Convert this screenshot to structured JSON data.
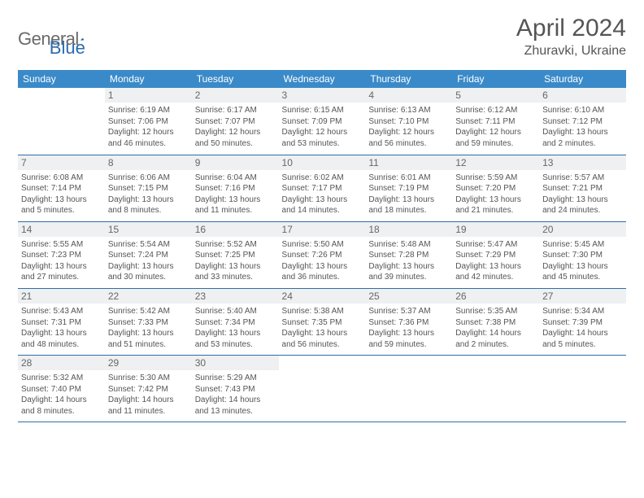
{
  "brand": {
    "part1": "General",
    "part2": "Blue"
  },
  "title": "April 2024",
  "location": "Zhuravki, Ukraine",
  "colors": {
    "header_bg": "#3a8ac9",
    "row_border": "#2e6fa8",
    "daynum_bg": "#eef0f1",
    "text": "#555555",
    "logo_gray": "#6a6a6a",
    "logo_blue": "#2a6cb0"
  },
  "columns": [
    "Sunday",
    "Monday",
    "Tuesday",
    "Wednesday",
    "Thursday",
    "Friday",
    "Saturday"
  ],
  "weeks": [
    [
      {
        "day": "",
        "sunrise": "",
        "sunset": "",
        "daylight": ""
      },
      {
        "day": "1",
        "sunrise": "Sunrise: 6:19 AM",
        "sunset": "Sunset: 7:06 PM",
        "daylight": "Daylight: 12 hours and 46 minutes."
      },
      {
        "day": "2",
        "sunrise": "Sunrise: 6:17 AM",
        "sunset": "Sunset: 7:07 PM",
        "daylight": "Daylight: 12 hours and 50 minutes."
      },
      {
        "day": "3",
        "sunrise": "Sunrise: 6:15 AM",
        "sunset": "Sunset: 7:09 PM",
        "daylight": "Daylight: 12 hours and 53 minutes."
      },
      {
        "day": "4",
        "sunrise": "Sunrise: 6:13 AM",
        "sunset": "Sunset: 7:10 PM",
        "daylight": "Daylight: 12 hours and 56 minutes."
      },
      {
        "day": "5",
        "sunrise": "Sunrise: 6:12 AM",
        "sunset": "Sunset: 7:11 PM",
        "daylight": "Daylight: 12 hours and 59 minutes."
      },
      {
        "day": "6",
        "sunrise": "Sunrise: 6:10 AM",
        "sunset": "Sunset: 7:12 PM",
        "daylight": "Daylight: 13 hours and 2 minutes."
      }
    ],
    [
      {
        "day": "7",
        "sunrise": "Sunrise: 6:08 AM",
        "sunset": "Sunset: 7:14 PM",
        "daylight": "Daylight: 13 hours and 5 minutes."
      },
      {
        "day": "8",
        "sunrise": "Sunrise: 6:06 AM",
        "sunset": "Sunset: 7:15 PM",
        "daylight": "Daylight: 13 hours and 8 minutes."
      },
      {
        "day": "9",
        "sunrise": "Sunrise: 6:04 AM",
        "sunset": "Sunset: 7:16 PM",
        "daylight": "Daylight: 13 hours and 11 minutes."
      },
      {
        "day": "10",
        "sunrise": "Sunrise: 6:02 AM",
        "sunset": "Sunset: 7:17 PM",
        "daylight": "Daylight: 13 hours and 14 minutes."
      },
      {
        "day": "11",
        "sunrise": "Sunrise: 6:01 AM",
        "sunset": "Sunset: 7:19 PM",
        "daylight": "Daylight: 13 hours and 18 minutes."
      },
      {
        "day": "12",
        "sunrise": "Sunrise: 5:59 AM",
        "sunset": "Sunset: 7:20 PM",
        "daylight": "Daylight: 13 hours and 21 minutes."
      },
      {
        "day": "13",
        "sunrise": "Sunrise: 5:57 AM",
        "sunset": "Sunset: 7:21 PM",
        "daylight": "Daylight: 13 hours and 24 minutes."
      }
    ],
    [
      {
        "day": "14",
        "sunrise": "Sunrise: 5:55 AM",
        "sunset": "Sunset: 7:23 PM",
        "daylight": "Daylight: 13 hours and 27 minutes."
      },
      {
        "day": "15",
        "sunrise": "Sunrise: 5:54 AM",
        "sunset": "Sunset: 7:24 PM",
        "daylight": "Daylight: 13 hours and 30 minutes."
      },
      {
        "day": "16",
        "sunrise": "Sunrise: 5:52 AM",
        "sunset": "Sunset: 7:25 PM",
        "daylight": "Daylight: 13 hours and 33 minutes."
      },
      {
        "day": "17",
        "sunrise": "Sunrise: 5:50 AM",
        "sunset": "Sunset: 7:26 PM",
        "daylight": "Daylight: 13 hours and 36 minutes."
      },
      {
        "day": "18",
        "sunrise": "Sunrise: 5:48 AM",
        "sunset": "Sunset: 7:28 PM",
        "daylight": "Daylight: 13 hours and 39 minutes."
      },
      {
        "day": "19",
        "sunrise": "Sunrise: 5:47 AM",
        "sunset": "Sunset: 7:29 PM",
        "daylight": "Daylight: 13 hours and 42 minutes."
      },
      {
        "day": "20",
        "sunrise": "Sunrise: 5:45 AM",
        "sunset": "Sunset: 7:30 PM",
        "daylight": "Daylight: 13 hours and 45 minutes."
      }
    ],
    [
      {
        "day": "21",
        "sunrise": "Sunrise: 5:43 AM",
        "sunset": "Sunset: 7:31 PM",
        "daylight": "Daylight: 13 hours and 48 minutes."
      },
      {
        "day": "22",
        "sunrise": "Sunrise: 5:42 AM",
        "sunset": "Sunset: 7:33 PM",
        "daylight": "Daylight: 13 hours and 51 minutes."
      },
      {
        "day": "23",
        "sunrise": "Sunrise: 5:40 AM",
        "sunset": "Sunset: 7:34 PM",
        "daylight": "Daylight: 13 hours and 53 minutes."
      },
      {
        "day": "24",
        "sunrise": "Sunrise: 5:38 AM",
        "sunset": "Sunset: 7:35 PM",
        "daylight": "Daylight: 13 hours and 56 minutes."
      },
      {
        "day": "25",
        "sunrise": "Sunrise: 5:37 AM",
        "sunset": "Sunset: 7:36 PM",
        "daylight": "Daylight: 13 hours and 59 minutes."
      },
      {
        "day": "26",
        "sunrise": "Sunrise: 5:35 AM",
        "sunset": "Sunset: 7:38 PM",
        "daylight": "Daylight: 14 hours and 2 minutes."
      },
      {
        "day": "27",
        "sunrise": "Sunrise: 5:34 AM",
        "sunset": "Sunset: 7:39 PM",
        "daylight": "Daylight: 14 hours and 5 minutes."
      }
    ],
    [
      {
        "day": "28",
        "sunrise": "Sunrise: 5:32 AM",
        "sunset": "Sunset: 7:40 PM",
        "daylight": "Daylight: 14 hours and 8 minutes."
      },
      {
        "day": "29",
        "sunrise": "Sunrise: 5:30 AM",
        "sunset": "Sunset: 7:42 PM",
        "daylight": "Daylight: 14 hours and 11 minutes."
      },
      {
        "day": "30",
        "sunrise": "Sunrise: 5:29 AM",
        "sunset": "Sunset: 7:43 PM",
        "daylight": "Daylight: 14 hours and 13 minutes."
      },
      {
        "day": "",
        "sunrise": "",
        "sunset": "",
        "daylight": ""
      },
      {
        "day": "",
        "sunrise": "",
        "sunset": "",
        "daylight": ""
      },
      {
        "day": "",
        "sunrise": "",
        "sunset": "",
        "daylight": ""
      },
      {
        "day": "",
        "sunrise": "",
        "sunset": "",
        "daylight": ""
      }
    ]
  ]
}
